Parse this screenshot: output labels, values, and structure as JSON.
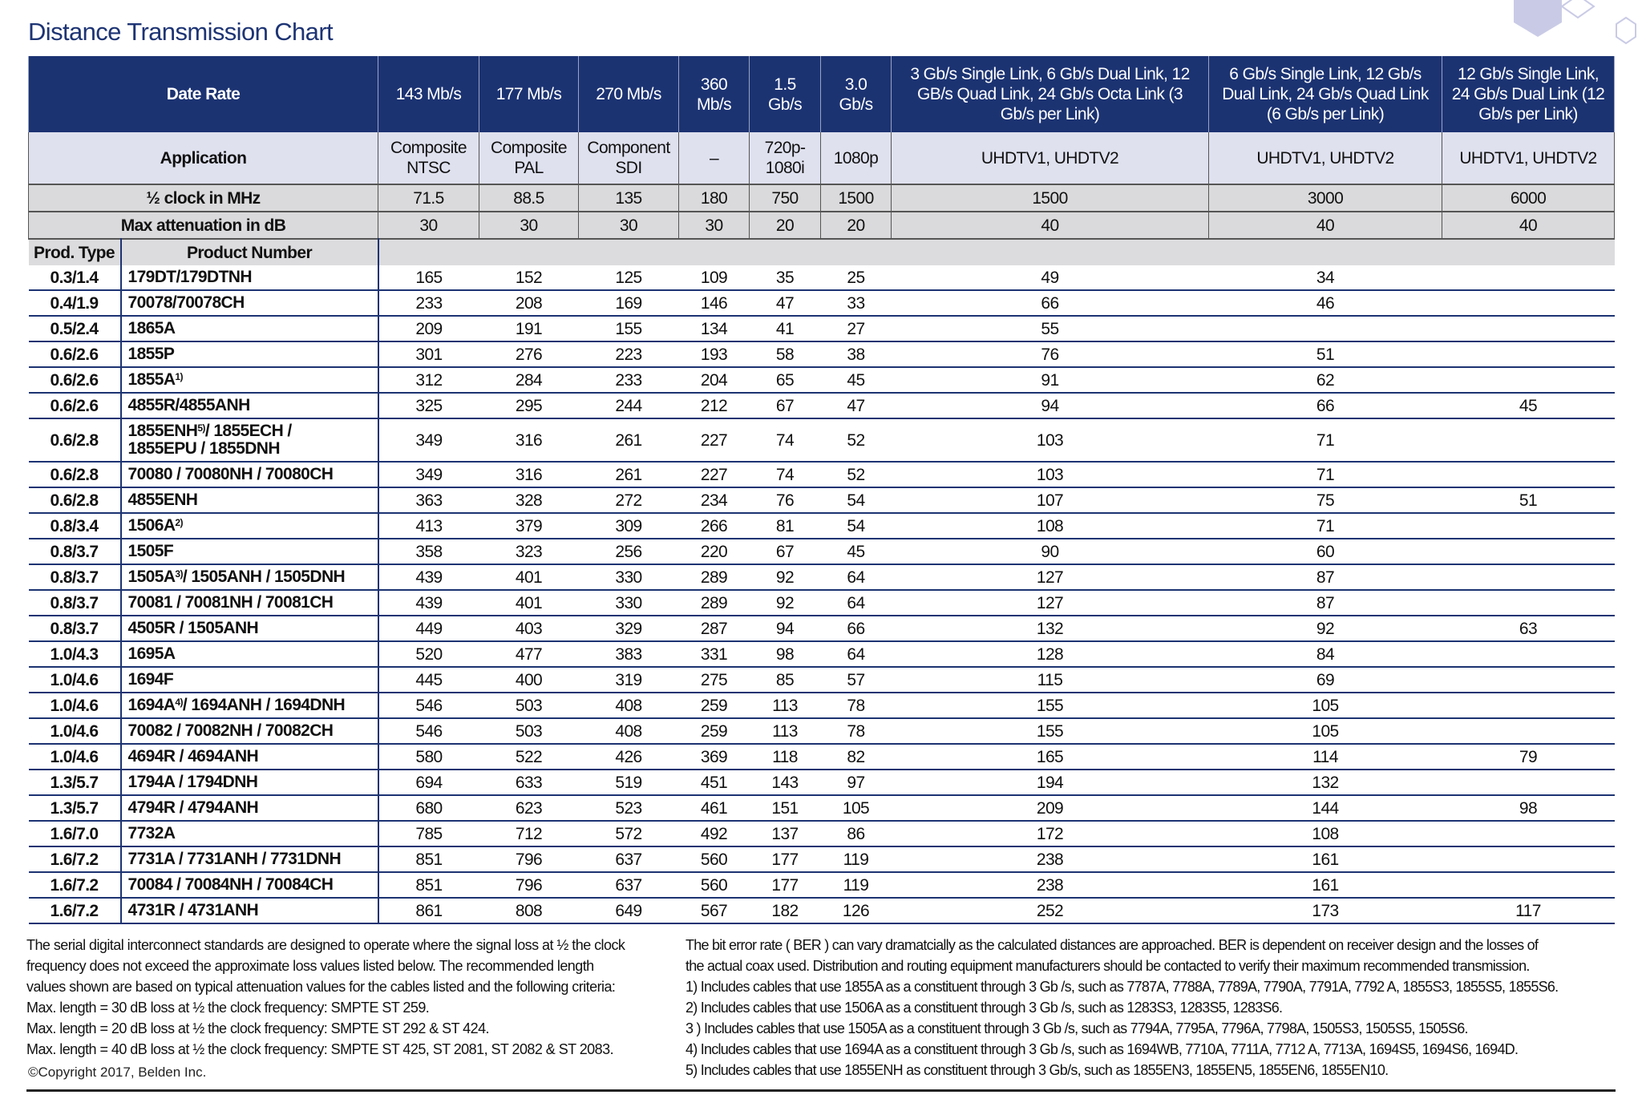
{
  "title": "Distance Transmission Chart",
  "colors": {
    "header_navy": "#1c3372",
    "application_row": "#dfe1ef",
    "gray_row": "#dadadc",
    "title": "#1d3474"
  },
  "header": {
    "data_rate_label": "Date Rate",
    "rates": [
      "143 Mb/s",
      "177 Mb/s",
      "270 Mb/s",
      "360 Mb/s",
      "1.5 Gb/s",
      "3.0 Gb/s",
      "3 Gb/s Single Link, 6 Gb/s Dual Link, 12 GB/s Quad Link, 24 Gb/s Octa Link (3 Gb/s per Link)",
      "6 Gb/s Single Link, 12 Gb/s Dual Link, 24 Gb/s Quad Link (6 Gb/s per Link)",
      "12 Gb/s Single Link, 24 Gb/s Dual Link (12 Gb/s per Link)"
    ],
    "application_label": "Application",
    "applications": [
      "Composite NTSC",
      "Composite PAL",
      "Component SDI",
      "–",
      "720p-1080i",
      "1080p",
      "UHDTV1, UHDTV2",
      "UHDTV1, UHDTV2",
      "UHDTV1, UHDTV2"
    ],
    "half_clock_label": "½ clock in MHz",
    "half_clock": [
      "71.5",
      "88.5",
      "135",
      "180",
      "750",
      "1500",
      "1500",
      "3000",
      "6000"
    ],
    "max_atten_label": "Max attenuation in dB",
    "max_atten": [
      "30",
      "30",
      "30",
      "30",
      "20",
      "20",
      "40",
      "40",
      "40"
    ],
    "prod_type_label": "Prod. Type",
    "product_number_label": "Product Number"
  },
  "rows": [
    {
      "prod_type": "0.3/1.4",
      "name": "179DT/179DTNH",
      "sup": "",
      "rest": "",
      "values": [
        "165",
        "152",
        "125",
        "109",
        "35",
        "25",
        "49",
        "34",
        ""
      ]
    },
    {
      "prod_type": "0.4/1.9",
      "name": "70078/70078CH",
      "sup": "",
      "rest": "",
      "values": [
        "233",
        "208",
        "169",
        "146",
        "47",
        "33",
        "66",
        "46",
        ""
      ]
    },
    {
      "prod_type": "0.5/2.4",
      "name": "1865A",
      "sup": "",
      "rest": "",
      "values": [
        "209",
        "191",
        "155",
        "134",
        "41",
        "27",
        "55",
        "",
        ""
      ]
    },
    {
      "prod_type": "0.6/2.6",
      "name": "1855P",
      "sup": "",
      "rest": "",
      "values": [
        "301",
        "276",
        "223",
        "193",
        "58",
        "38",
        "76",
        "51",
        ""
      ]
    },
    {
      "prod_type": "0.6/2.6",
      "name": "1855A",
      "sup": "1)",
      "rest": "",
      "values": [
        "312",
        "284",
        "233",
        "204",
        "65",
        "45",
        "91",
        "62",
        ""
      ]
    },
    {
      "prod_type": "0.6/2.6",
      "name": "4855R/4855ANH",
      "sup": "",
      "rest": "",
      "values": [
        "325",
        "295",
        "244",
        "212",
        "67",
        "47",
        "94",
        "66",
        "45"
      ]
    },
    {
      "prod_type": "0.6/2.8",
      "name": "1855ENH",
      "sup": "5)",
      "rest": "/ 1855ECH / 1855EPU / 1855DNH",
      "values": [
        "349",
        "316",
        "261",
        "227",
        "74",
        "52",
        "103",
        "71",
        ""
      ]
    },
    {
      "prod_type": "0.6/2.8",
      "name": "70080 / 70080NH / 70080CH",
      "sup": "",
      "rest": "",
      "values": [
        "349",
        "316",
        "261",
        "227",
        "74",
        "52",
        "103",
        "71",
        ""
      ]
    },
    {
      "prod_type": "0.6/2.8",
      "name": "4855ENH",
      "sup": "",
      "rest": "",
      "values": [
        "363",
        "328",
        "272",
        "234",
        "76",
        "54",
        "107",
        "75",
        "51"
      ]
    },
    {
      "prod_type": "0.8/3.4",
      "name": "1506A",
      "sup": "2)",
      "rest": "",
      "values": [
        "413",
        "379",
        "309",
        "266",
        "81",
        "54",
        "108",
        "71",
        ""
      ]
    },
    {
      "prod_type": "0.8/3.7",
      "name": "1505F",
      "sup": "",
      "rest": "",
      "values": [
        "358",
        "323",
        "256",
        "220",
        "67",
        "45",
        "90",
        "60",
        ""
      ]
    },
    {
      "prod_type": "0.8/3.7",
      "name": "1505A",
      "sup": "3)",
      "rest": "/ 1505ANH / 1505DNH",
      "values": [
        "439",
        "401",
        "330",
        "289",
        "92",
        "64",
        "127",
        "87",
        ""
      ]
    },
    {
      "prod_type": "0.8/3.7",
      "name": "70081 / 70081NH / 70081CH",
      "sup": "",
      "rest": "",
      "values": [
        "439",
        "401",
        "330",
        "289",
        "92",
        "64",
        "127",
        "87",
        ""
      ]
    },
    {
      "prod_type": "0.8/3.7",
      "name": "4505R / 1505ANH",
      "sup": "",
      "rest": "",
      "values": [
        "449",
        "403",
        "329",
        "287",
        "94",
        "66",
        "132",
        "92",
        "63"
      ]
    },
    {
      "prod_type": "1.0/4.3",
      "name": "1695A",
      "sup": "",
      "rest": "",
      "values": [
        "520",
        "477",
        "383",
        "331",
        "98",
        "64",
        "128",
        "84",
        ""
      ]
    },
    {
      "prod_type": "1.0/4.6",
      "name": "1694F",
      "sup": "",
      "rest": "",
      "values": [
        "445",
        "400",
        "319",
        "275",
        "85",
        "57",
        "115",
        "69",
        ""
      ]
    },
    {
      "prod_type": "1.0/4.6",
      "name": "1694A",
      "sup": "4)",
      "rest": "/ 1694ANH / 1694DNH",
      "values": [
        "546",
        "503",
        "408",
        "259",
        "113",
        "78",
        "155",
        "105",
        ""
      ]
    },
    {
      "prod_type": "1.0/4.6",
      "name": "70082 / 70082NH / 70082CH",
      "sup": "",
      "rest": "",
      "values": [
        "546",
        "503",
        "408",
        "259",
        "113",
        "78",
        "155",
        "105",
        ""
      ]
    },
    {
      "prod_type": "1.0/4.6",
      "name": "4694R / 4694ANH",
      "sup": "",
      "rest": "",
      "values": [
        "580",
        "522",
        "426",
        "369",
        "118",
        "82",
        "165",
        "114",
        "79"
      ]
    },
    {
      "prod_type": "1.3/5.7",
      "name": "1794A / 1794DNH",
      "sup": "",
      "rest": "",
      "values": [
        "694",
        "633",
        "519",
        "451",
        "143",
        "97",
        "194",
        "132",
        ""
      ]
    },
    {
      "prod_type": "1.3/5.7",
      "name": "4794R / 4794ANH",
      "sup": "",
      "rest": "",
      "values": [
        "680",
        "623",
        "523",
        "461",
        "151",
        "105",
        "209",
        "144",
        "98"
      ]
    },
    {
      "prod_type": "1.6/7.0",
      "name": "7732A",
      "sup": "",
      "rest": "",
      "values": [
        "785",
        "712",
        "572",
        "492",
        "137",
        "86",
        "172",
        "108",
        ""
      ]
    },
    {
      "prod_type": "1.6/7.2",
      "name": "7731A / 7731ANH / 7731DNH",
      "sup": "",
      "rest": "",
      "values": [
        "851",
        "796",
        "637",
        "560",
        "177",
        "119",
        "238",
        "161",
        ""
      ]
    },
    {
      "prod_type": "1.6/7.2",
      "name": "70084 / 70084NH / 70084CH",
      "sup": "",
      "rest": "",
      "values": [
        "851",
        "796",
        "637",
        "560",
        "177",
        "119",
        "238",
        "161",
        ""
      ]
    },
    {
      "prod_type": "1.6/7.2",
      "name": "4731R / 4731ANH",
      "sup": "",
      "rest": "",
      "values": [
        "861",
        "808",
        "649",
        "567",
        "182",
        "126",
        "252",
        "173",
        "117"
      ]
    }
  ],
  "footer_left": [
    "The serial digital interconnect standards are designed to operate where the signal loss at ½ the clock",
    "frequency does not exceed the approximate loss values listed below. The recommended length",
    "values shown are based on typical attenuation values for the cables listed and the following criteria:",
    "Max. length = 30 dB loss at ½ the clock frequency: SMPTE ST 259.",
    "Max. length = 20 dB loss at ½ the clock frequency: SMPTE ST 292 & ST 424.",
    "Max. length = 40 dB loss at ½ the clock frequency: SMPTE ST 425, ST 2081, ST 2082 & ST 2083."
  ],
  "copyright": "©Copyright 2017, Belden Inc.",
  "footer_right": [
    "The bit error rate ( BER ) can vary dramatcially as the calculated distances are approached. BER is dependent on receiver design and the losses of",
    "the actual coax used. Distribution and routing equipment manufacturers should be contacted to verify their maximum recommended transmission.",
    "1) Includes cables that use 1855A as a constituent through 3 Gb /s, such as 7787A, 7788A, 7789A, 7790A, 7791A, 7792 A, 1855S3, 1855S5, 1855S6.",
    "2) Includes cables that use 1506A as a constituent through 3 Gb /s, such as 1283S3, 1283S5, 1283S6.",
    "3 ) Includes cables that use 1505A as a constituent through 3 Gb /s, such as 7794A, 7795A, 7796A, 7798A, 1505S3, 1505S5, 1505S6.",
    "4) Includes cables that use 1694A as a constituent through 3 Gb /s, such as 1694WB, 7710A, 7711A, 7712 A, 7713A, 1694S5, 1694S6, 1694D.",
    "5) Includes cables that use 1855ENH as constituent through 3 Gb/s, such as 1855EN3, 1855EN5, 1855EN6, 1855EN10."
  ]
}
